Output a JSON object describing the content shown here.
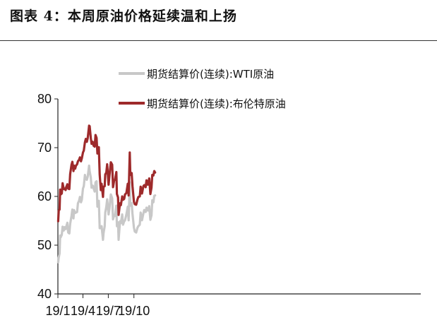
{
  "title": "图表 4：本周原油价格延续温和上扬",
  "chart_data": {
    "type": "line",
    "x_ticks": [
      "19/1",
      "19/4",
      "19/7",
      "19/10"
    ],
    "ylim": [
      40,
      80
    ],
    "y_ticks": [
      40,
      50,
      60,
      70,
      80
    ],
    "legend_position": "top",
    "grid": false,
    "series": [
      {
        "name": "期货结算价(连续):WTI原油",
        "color": "#c8c8c8",
        "points": [
          [
            "2019-01-02",
            46.5
          ],
          [
            "2019-01-04",
            47.5
          ],
          [
            "2019-01-07",
            48.3
          ],
          [
            "2019-01-09",
            52.0
          ],
          [
            "2019-01-11",
            51.6
          ],
          [
            "2019-01-15",
            52.1
          ],
          [
            "2019-01-18",
            53.8
          ],
          [
            "2019-01-22",
            53.0
          ],
          [
            "2019-01-25",
            53.7
          ],
          [
            "2019-01-29",
            53.3
          ],
          [
            "2019-01-31",
            53.8
          ],
          [
            "2019-02-04",
            54.6
          ],
          [
            "2019-02-07",
            52.6
          ],
          [
            "2019-02-11",
            52.4
          ],
          [
            "2019-02-14",
            54.4
          ],
          [
            "2019-02-19",
            56.0
          ],
          [
            "2019-02-22",
            57.3
          ],
          [
            "2019-02-26",
            55.5
          ],
          [
            "2019-02-28",
            57.2
          ],
          [
            "2019-03-04",
            56.6
          ],
          [
            "2019-03-07",
            56.7
          ],
          [
            "2019-03-11",
            56.8
          ],
          [
            "2019-03-14",
            58.6
          ],
          [
            "2019-03-18",
            59.1
          ],
          [
            "2019-03-21",
            59.9
          ],
          [
            "2019-03-25",
            58.8
          ],
          [
            "2019-03-28",
            59.3
          ],
          [
            "2019-04-01",
            61.6
          ],
          [
            "2019-04-04",
            62.1
          ],
          [
            "2019-04-08",
            64.4
          ],
          [
            "2019-04-11",
            63.6
          ],
          [
            "2019-04-15",
            63.4
          ],
          [
            "2019-04-18",
            64.0
          ],
          [
            "2019-04-23",
            66.3
          ],
          [
            "2019-04-25",
            65.2
          ],
          [
            "2019-04-29",
            63.9
          ],
          [
            "2019-05-02",
            61.8
          ],
          [
            "2019-05-06",
            62.2
          ],
          [
            "2019-05-09",
            61.7
          ],
          [
            "2019-05-13",
            61.0
          ],
          [
            "2019-05-16",
            62.9
          ],
          [
            "2019-05-20",
            63.1
          ],
          [
            "2019-05-23",
            57.9
          ],
          [
            "2019-05-28",
            59.1
          ],
          [
            "2019-05-31",
            53.5
          ],
          [
            "2019-06-04",
            53.5
          ],
          [
            "2019-06-07",
            53.9
          ],
          [
            "2019-06-12",
            51.1
          ],
          [
            "2019-06-14",
            52.5
          ],
          [
            "2019-06-18",
            53.9
          ],
          [
            "2019-06-20",
            56.7
          ],
          [
            "2019-06-24",
            57.9
          ],
          [
            "2019-06-27",
            59.4
          ],
          [
            "2019-07-02",
            56.3
          ],
          [
            "2019-07-05",
            57.5
          ],
          [
            "2019-07-10",
            60.4
          ],
          [
            "2019-07-15",
            59.6
          ],
          [
            "2019-07-18",
            55.3
          ],
          [
            "2019-07-22",
            56.2
          ],
          [
            "2019-07-25",
            56.0
          ],
          [
            "2019-07-30",
            58.1
          ],
          [
            "2019-08-01",
            53.9
          ],
          [
            "2019-08-05",
            54.7
          ],
          [
            "2019-08-07",
            51.1
          ],
          [
            "2019-08-12",
            54.9
          ],
          [
            "2019-08-15",
            54.5
          ],
          [
            "2019-08-20",
            56.3
          ],
          [
            "2019-08-23",
            54.2
          ],
          [
            "2019-08-27",
            54.9
          ],
          [
            "2019-08-30",
            55.1
          ],
          [
            "2019-09-04",
            56.3
          ],
          [
            "2019-09-09",
            57.9
          ],
          [
            "2019-09-12",
            55.1
          ],
          [
            "2019-09-16",
            62.9
          ],
          [
            "2019-09-18",
            58.1
          ],
          [
            "2019-09-23",
            58.6
          ],
          [
            "2019-09-26",
            56.4
          ],
          [
            "2019-10-01",
            53.6
          ],
          [
            "2019-10-04",
            52.8
          ],
          [
            "2019-10-09",
            52.6
          ],
          [
            "2019-10-14",
            53.6
          ],
          [
            "2019-10-17",
            53.9
          ],
          [
            "2019-10-22",
            54.2
          ],
          [
            "2019-10-25",
            56.7
          ],
          [
            "2019-10-30",
            55.1
          ],
          [
            "2019-11-04",
            56.5
          ],
          [
            "2019-11-07",
            57.2
          ],
          [
            "2019-11-12",
            56.8
          ],
          [
            "2019-11-15",
            57.7
          ],
          [
            "2019-11-20",
            57.1
          ],
          [
            "2019-11-25",
            58.0
          ],
          [
            "2019-11-29",
            55.2
          ],
          [
            "2019-12-03",
            56.1
          ],
          [
            "2019-12-06",
            59.2
          ],
          [
            "2019-12-10",
            58.8
          ],
          [
            "2019-12-13",
            60.1
          ],
          [
            "2019-12-16",
            60.2
          ]
        ]
      },
      {
        "name": "期货结算价(连续):布伦特原油",
        "color": "#9e2a2b",
        "points": [
          [
            "2019-01-02",
            54.9
          ],
          [
            "2019-01-04",
            57.1
          ],
          [
            "2019-01-07",
            57.3
          ],
          [
            "2019-01-09",
            61.4
          ],
          [
            "2019-01-11",
            60.4
          ],
          [
            "2019-01-15",
            60.6
          ],
          [
            "2019-01-18",
            62.7
          ],
          [
            "2019-01-22",
            61.5
          ],
          [
            "2019-01-25",
            61.6
          ],
          [
            "2019-01-29",
            61.3
          ],
          [
            "2019-01-31",
            61.9
          ],
          [
            "2019-02-04",
            62.5
          ],
          [
            "2019-02-07",
            61.6
          ],
          [
            "2019-02-11",
            61.5
          ],
          [
            "2019-02-14",
            64.6
          ],
          [
            "2019-02-19",
            66.5
          ],
          [
            "2019-02-22",
            67.1
          ],
          [
            "2019-02-26",
            65.2
          ],
          [
            "2019-02-28",
            66.3
          ],
          [
            "2019-03-04",
            65.7
          ],
          [
            "2019-03-07",
            66.3
          ],
          [
            "2019-03-11",
            66.6
          ],
          [
            "2019-03-14",
            67.2
          ],
          [
            "2019-03-18",
            67.5
          ],
          [
            "2019-03-21",
            68.0
          ],
          [
            "2019-03-25",
            67.2
          ],
          [
            "2019-03-28",
            67.8
          ],
          [
            "2019-04-01",
            69.0
          ],
          [
            "2019-04-04",
            69.4
          ],
          [
            "2019-04-08",
            71.1
          ],
          [
            "2019-04-11",
            71.8
          ],
          [
            "2019-04-15",
            71.2
          ],
          [
            "2019-04-18",
            71.9
          ],
          [
            "2019-04-23",
            74.5
          ],
          [
            "2019-04-25",
            74.4
          ],
          [
            "2019-04-29",
            72.0
          ],
          [
            "2019-05-02",
            70.8
          ],
          [
            "2019-05-06",
            71.2
          ],
          [
            "2019-05-09",
            70.4
          ],
          [
            "2019-05-13",
            70.2
          ],
          [
            "2019-05-16",
            72.6
          ],
          [
            "2019-05-20",
            72.0
          ],
          [
            "2019-05-23",
            68.8
          ],
          [
            "2019-05-28",
            70.1
          ],
          [
            "2019-05-31",
            64.5
          ],
          [
            "2019-06-04",
            61.3
          ],
          [
            "2019-06-07",
            62.6
          ],
          [
            "2019-06-12",
            59.9
          ],
          [
            "2019-06-14",
            62.0
          ],
          [
            "2019-06-18",
            62.1
          ],
          [
            "2019-06-20",
            64.5
          ],
          [
            "2019-06-24",
            64.9
          ],
          [
            "2019-06-27",
            66.6
          ],
          [
            "2019-07-02",
            62.4
          ],
          [
            "2019-07-05",
            64.2
          ],
          [
            "2019-07-10",
            67.0
          ],
          [
            "2019-07-15",
            66.5
          ],
          [
            "2019-07-18",
            61.9
          ],
          [
            "2019-07-22",
            63.3
          ],
          [
            "2019-07-25",
            63.4
          ],
          [
            "2019-07-30",
            65.0
          ],
          [
            "2019-08-01",
            60.5
          ],
          [
            "2019-08-05",
            59.8
          ],
          [
            "2019-08-07",
            56.2
          ],
          [
            "2019-08-12",
            58.6
          ],
          [
            "2019-08-15",
            58.2
          ],
          [
            "2019-08-20",
            60.0
          ],
          [
            "2019-08-23",
            59.3
          ],
          [
            "2019-08-27",
            59.5
          ],
          [
            "2019-08-30",
            60.4
          ],
          [
            "2019-09-04",
            60.7
          ],
          [
            "2019-09-09",
            62.6
          ],
          [
            "2019-09-12",
            60.2
          ],
          [
            "2019-09-16",
            69.0
          ],
          [
            "2019-09-18",
            64.4
          ],
          [
            "2019-09-23",
            64.8
          ],
          [
            "2019-09-26",
            62.1
          ],
          [
            "2019-10-01",
            58.9
          ],
          [
            "2019-10-04",
            58.4
          ],
          [
            "2019-10-09",
            58.3
          ],
          [
            "2019-10-14",
            59.4
          ],
          [
            "2019-10-17",
            59.9
          ],
          [
            "2019-10-22",
            60.0
          ],
          [
            "2019-10-25",
            62.0
          ],
          [
            "2019-10-30",
            60.6
          ],
          [
            "2019-11-04",
            62.1
          ],
          [
            "2019-11-07",
            62.3
          ],
          [
            "2019-11-12",
            61.9
          ],
          [
            "2019-11-15",
            63.3
          ],
          [
            "2019-11-20",
            62.4
          ],
          [
            "2019-11-25",
            63.7
          ],
          [
            "2019-11-29",
            60.5
          ],
          [
            "2019-12-03",
            61.8
          ],
          [
            "2019-12-06",
            64.4
          ],
          [
            "2019-12-10",
            64.3
          ],
          [
            "2019-12-13",
            65.2
          ],
          [
            "2019-12-16",
            64.9
          ]
        ]
      }
    ]
  }
}
